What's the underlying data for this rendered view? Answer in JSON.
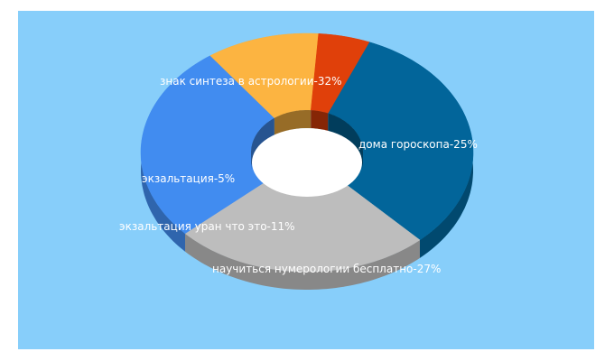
{
  "colors": {
    "background": "#87cefa",
    "series": [
      "#02659a",
      "#bdbdbd",
      "#418cf0",
      "#fcb441",
      "#e0400a"
    ]
  },
  "chart_data": {
    "type": "pie",
    "variant": "3d-donut",
    "legend": "none",
    "slices": [
      {
        "label": "знак синтеза в астрологии",
        "value": 32,
        "text": "знак синтеза в астрологии-32%"
      },
      {
        "label": "дома гороскопа",
        "value": 25,
        "text": "дома гороскопа-25%"
      },
      {
        "label": "научиться нумерологии бесплатно",
        "value": 27,
        "text": "научиться нумерологии бесплатно-27%"
      },
      {
        "label": "экзальтация уран что это",
        "value": 11,
        "text": "экзальтация уран что это-11%"
      },
      {
        "label": "экзальтация",
        "value": 5,
        "text": "экзальтация-5%"
      }
    ]
  }
}
